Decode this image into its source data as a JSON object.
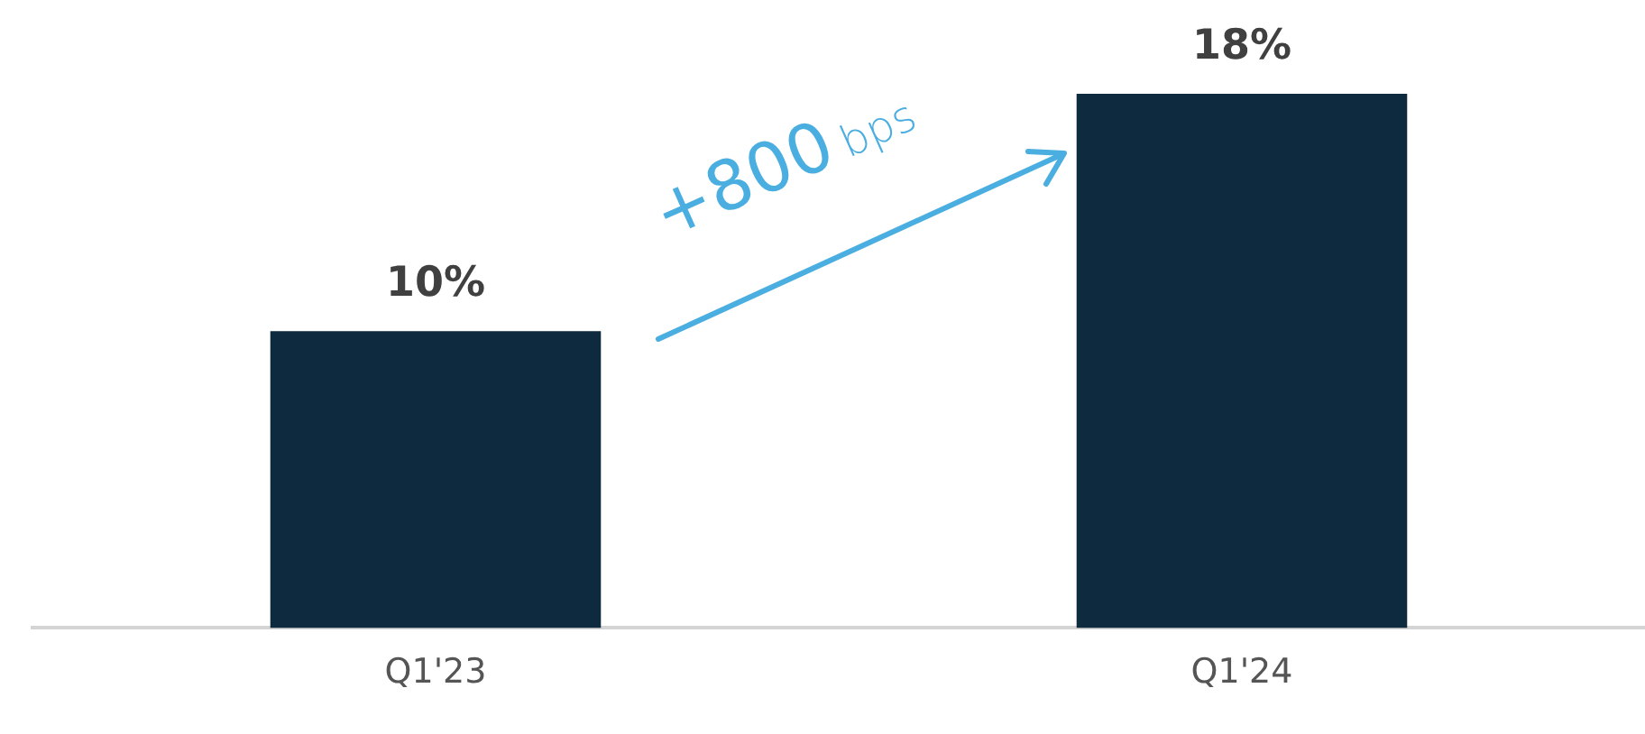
{
  "chart_data": {
    "type": "bar",
    "categories": [
      "Q1'23",
      "Q1'24"
    ],
    "values": [
      10,
      18
    ],
    "color": "#0d2a3e",
    "value_labels": [
      "10%",
      "18%"
    ],
    "tick_labels": "x",
    "grid": false,
    "legend": false,
    "annotations": [
      "+800 bps"
    ]
  }
}
